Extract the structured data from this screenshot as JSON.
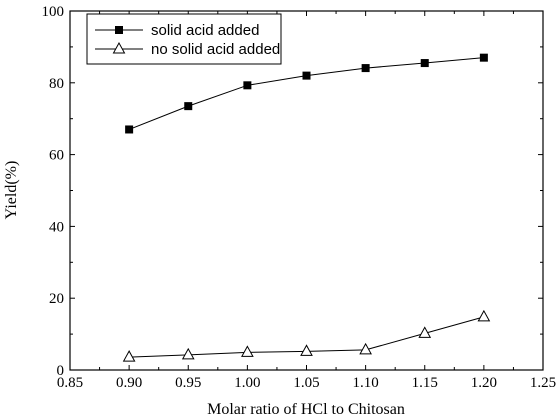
{
  "chart_data": {
    "type": "line",
    "title": "",
    "xlabel": "Molar ratio of HCl to Chitosan",
    "ylabel": "Yield(%)",
    "xlim": [
      0.85,
      1.25
    ],
    "ylim": [
      0,
      100
    ],
    "x_ticks": [
      "0.85",
      "0.90",
      "0.95",
      "1.00",
      "1.05",
      "1.10",
      "1.15",
      "1.20",
      "1.25"
    ],
    "y_ticks": [
      "0",
      "20",
      "40",
      "60",
      "80",
      "100"
    ],
    "x": [
      0.9,
      0.95,
      1.0,
      1.05,
      1.1,
      1.15,
      1.2
    ],
    "series": [
      {
        "name": "solid acid added",
        "marker": "filled-square",
        "values": [
          67,
          73.5,
          79.3,
          82,
          84.1,
          85.5,
          87
        ]
      },
      {
        "name": "no solid acid added",
        "marker": "open-triangle",
        "values": [
          3.6,
          4.2,
          4.9,
          5.2,
          5.6,
          10.2,
          14.8
        ]
      }
    ],
    "legend": "top-left",
    "grid": false
  }
}
